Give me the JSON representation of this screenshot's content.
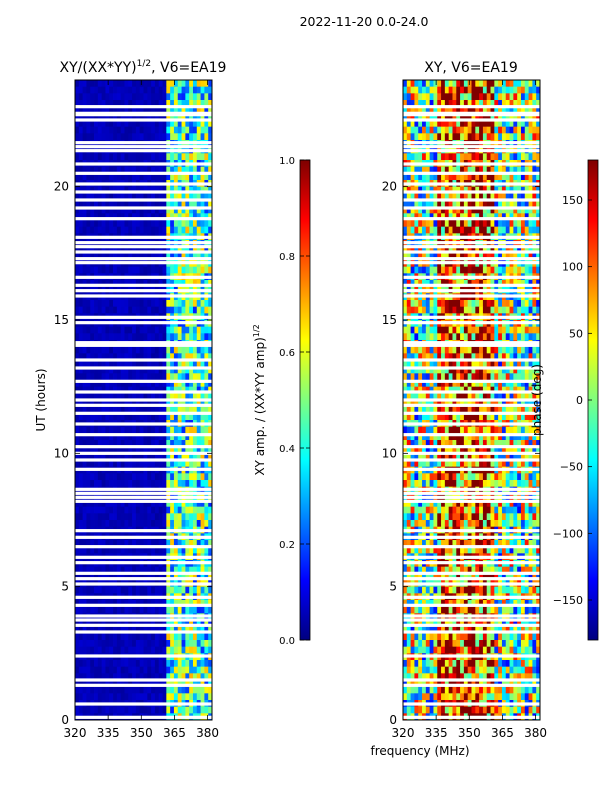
{
  "suptitle": "2022-11-20 0.0-24.0",
  "chart_data": [
    {
      "type": "heatmap",
      "title_main": "XY/(XX*YY)",
      "title_sup": "1/2",
      "title_rest": ", V6=EA19",
      "xlabel": "",
      "ylabel": "UT (hours)",
      "xlim": [
        320,
        382
      ],
      "ylim": [
        0,
        24
      ],
      "xticks": [
        320,
        335,
        350,
        365,
        380
      ],
      "yticks": [
        0,
        5,
        10,
        15,
        20
      ],
      "colorbar": {
        "label_main": "XY amp. / (XX*YY amp)",
        "label_sup": "1/2",
        "range": [
          0.0,
          1.0
        ],
        "ticks": [
          "0.0",
          "0.2",
          "0.4",
          "0.6",
          "0.8",
          "1.0"
        ],
        "colormap": "jet"
      }
    },
    {
      "type": "heatmap",
      "title": "XY, V6=EA19",
      "xlabel": "frequency (MHz)",
      "ylabel": "",
      "xlim": [
        320,
        382
      ],
      "ylim": [
        0,
        24
      ],
      "xticks": [
        320,
        335,
        350,
        365,
        380
      ],
      "yticks": [
        0,
        5,
        10,
        15,
        20
      ],
      "colorbar": {
        "label": "phase (deg)",
        "range": [
          -180,
          180
        ],
        "ticks": [
          "−150",
          "−100",
          "−50",
          "0",
          "50",
          "100",
          "150"
        ],
        "tick_values": [
          -150,
          -100,
          -50,
          0,
          50,
          100,
          150
        ],
        "colormap": "jet"
      }
    }
  ],
  "flagged_hours": [
    0.1,
    0.6,
    1.3,
    1.5,
    2.4,
    3.3,
    3.55,
    3.75,
    3.9,
    4.3,
    4.6,
    5.1,
    5.3,
    5.5,
    5.9,
    6.1,
    6.5,
    6.85,
    7.1,
    8.2,
    8.35,
    8.5,
    8.65,
    9.4,
    9.75,
    10.0,
    10.25,
    10.7,
    11.1,
    11.5,
    11.8,
    12.0,
    12.3,
    12.7,
    13.2,
    13.5,
    14.05,
    14.15,
    14.9,
    15.1,
    15.9,
    16.1,
    16.3,
    16.6,
    17.15,
    17.3,
    17.55,
    17.75,
    17.9,
    18.1,
    18.8,
    19.2,
    19.5,
    19.8,
    20.1,
    20.5,
    20.85,
    21.35,
    21.5,
    21.65,
    22.5,
    22.7,
    22.75,
    23.0
  ]
}
